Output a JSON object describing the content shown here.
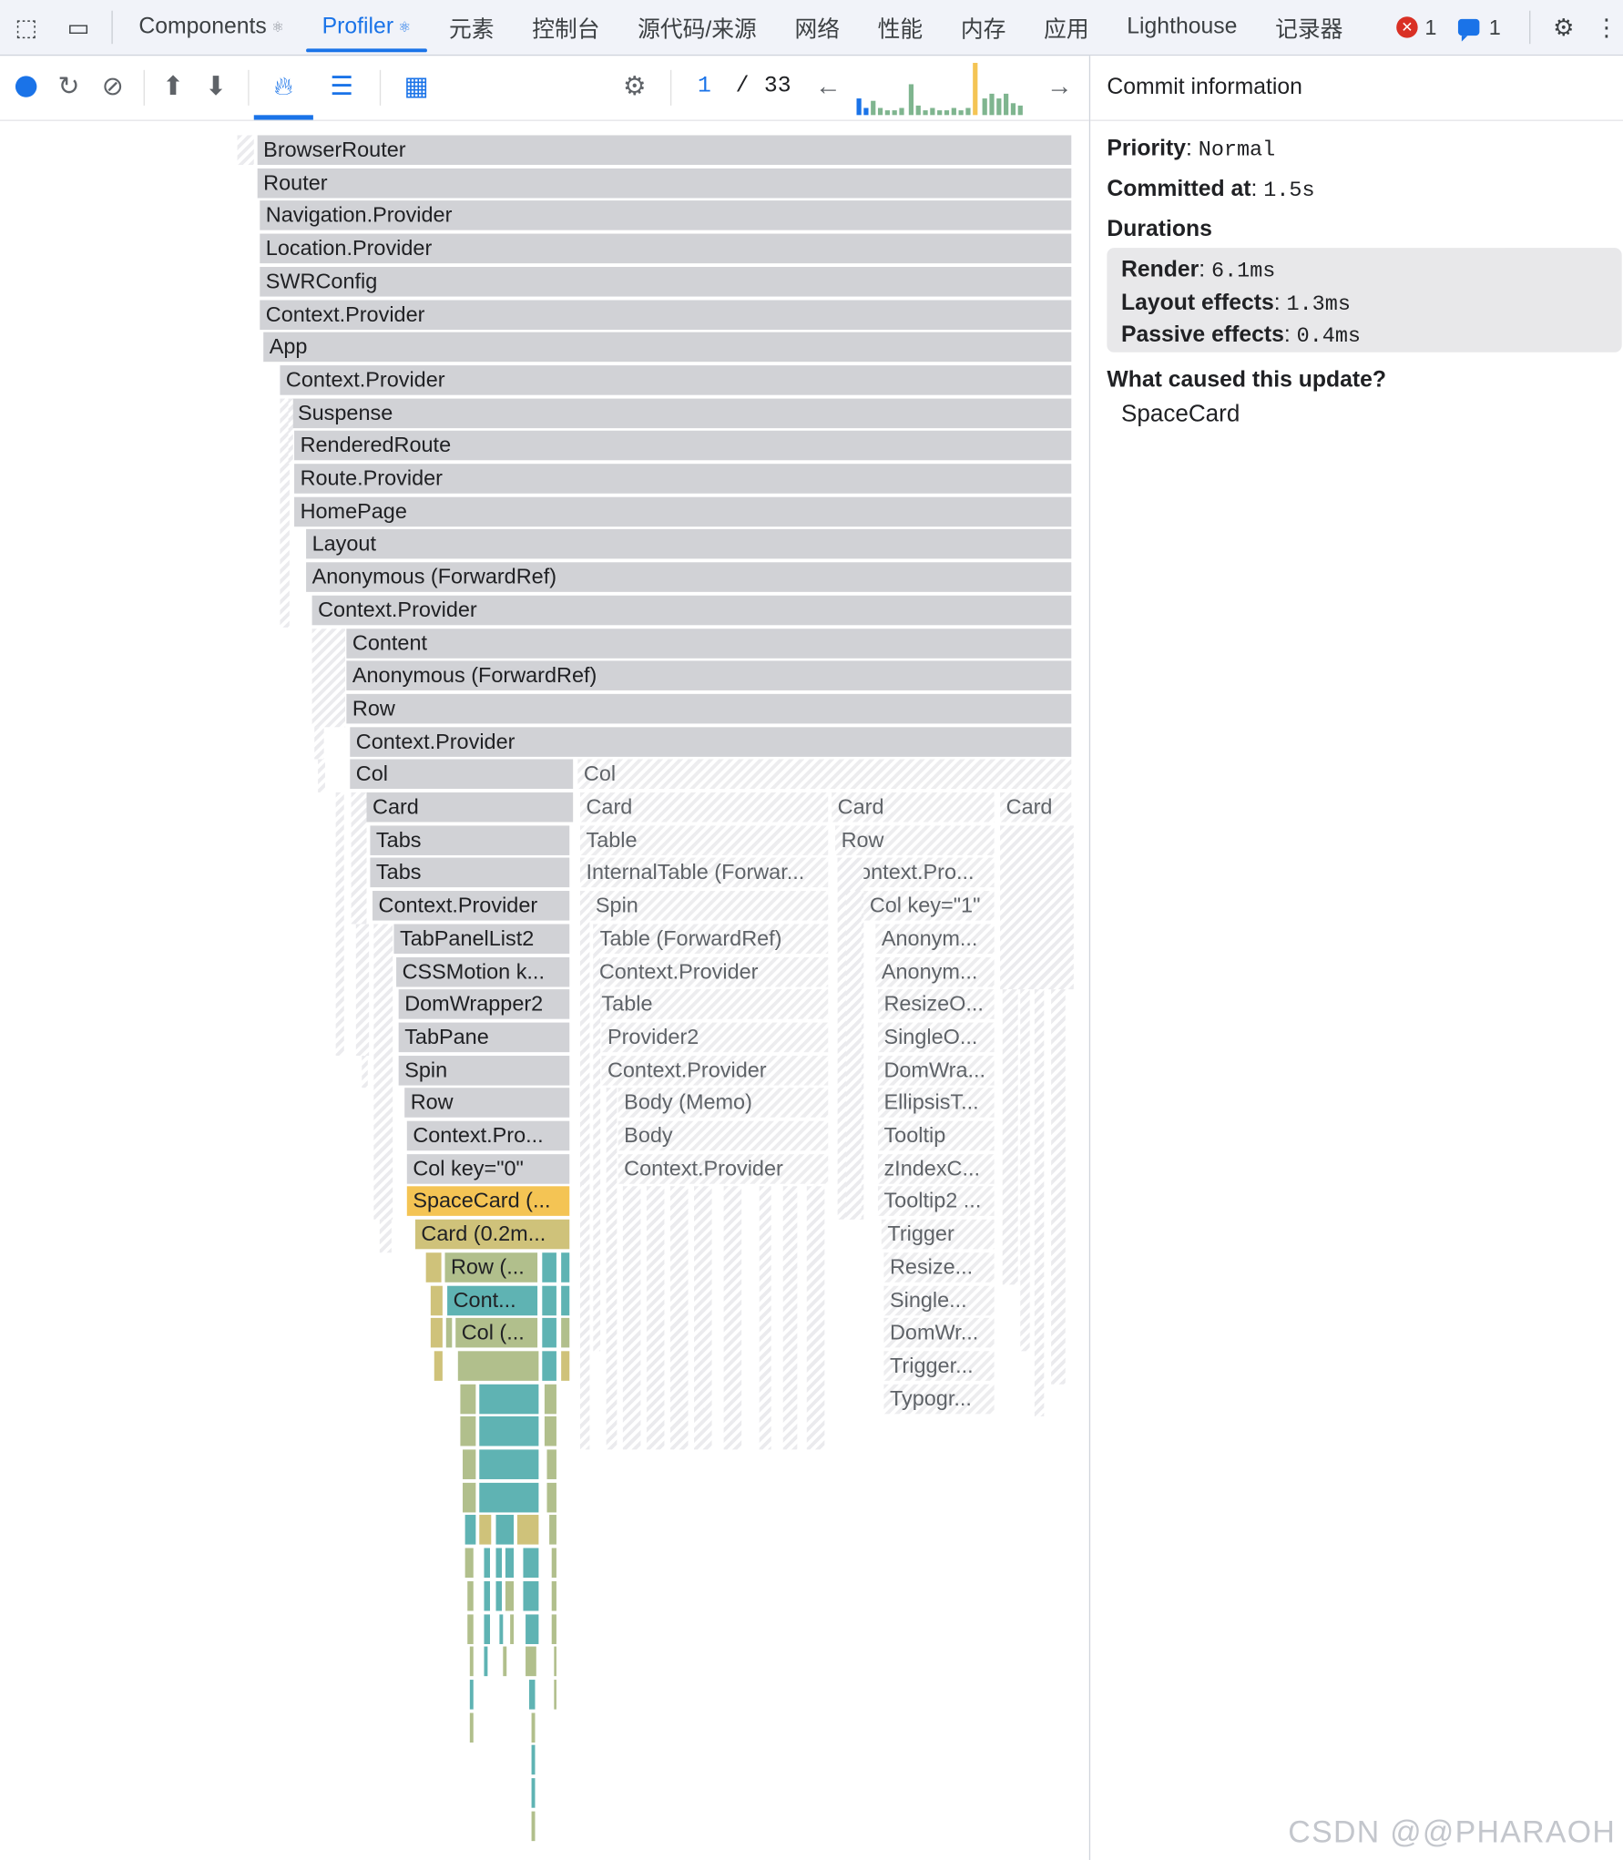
{
  "tabbar": {
    "tabs": [
      {
        "label": "Components",
        "react": "⚛",
        "active": false
      },
      {
        "label": "Profiler",
        "react": "⚛",
        "active": true
      },
      {
        "label": "元素"
      },
      {
        "label": "控制台"
      },
      {
        "label": "源代码/来源"
      },
      {
        "label": "网络"
      },
      {
        "label": "性能"
      },
      {
        "label": "内存"
      },
      {
        "label": "应用"
      },
      {
        "label": "Lighthouse"
      },
      {
        "label": "记录器"
      }
    ],
    "errors_count": "1",
    "messages_count": "1"
  },
  "toolbar": {
    "commit_index": "1",
    "commit_sep": "/",
    "commit_total": "33"
  },
  "flame": {
    "nodes": [
      "BrowserRouter",
      "Router",
      "Navigation.Provider",
      "Location.Provider",
      "SWRConfig",
      "Context.Provider",
      "App",
      "Context.Provider",
      "Suspense",
      "RenderedRoute",
      "Route.Provider",
      "HomePage",
      "Layout",
      "Anonymous (ForwardRef)",
      "Context.Provider",
      "Content",
      "Anonymous (ForwardRef)",
      "Row",
      "Context.Provider",
      "Col",
      "Col",
      "Card",
      "Card",
      "Card",
      "Card",
      "Tabs",
      "Table",
      "Row",
      "Tabs",
      "InternalTable (Forwar...",
      "Context.Pro...",
      "Context.Provider",
      "Spin",
      "Col key=\"1\"",
      "TabPanelList2",
      "Table (ForwardRef)",
      "Anonym...",
      "CSSMotion k...",
      "Context.Provider",
      "Anonym...",
      "DomWrapper2",
      "Table",
      "ResizeO...",
      "TabPane",
      "Provider2",
      "SingleO...",
      "Spin",
      "Context.Provider",
      "DomWra...",
      "Row",
      "Body (Memo)",
      "EllipsisT...",
      "Context.Pro...",
      "Body",
      "Tooltip",
      "Col key=\"0\"",
      "Context.Provider",
      "zIndexC...",
      "SpaceCard (...",
      "Tooltip2 ...",
      "Card (0.2m...",
      "Trigger",
      "Row (...",
      "Resize...",
      "Cont...",
      "Single...",
      "Col (...",
      "DomWr...",
      "Trigger...",
      "Typogr..."
    ]
  },
  "panel": {
    "header": "Commit information",
    "priority_label": "Priority",
    "priority_value": "Normal",
    "committed_label": "Committed at",
    "committed_value": "1.5s",
    "durations_label": "Durations",
    "render_label": "Render",
    "render_value": "6.1ms",
    "layout_label": "Layout effects",
    "layout_value": "1.3ms",
    "passive_label": "Passive effects",
    "passive_value": "0.4ms",
    "caused_label": "What caused this update?",
    "caused_value": "SpaceCard"
  },
  "watermark": "CSDN @@PHARAOH",
  "colors": {
    "accent": "#1a73e8",
    "selected_node": "#f4c454",
    "rendered_fast": "#5fb3b3",
    "rendered_mid": "#b1bf8c",
    "not_rendered": "#d1d2d6"
  }
}
